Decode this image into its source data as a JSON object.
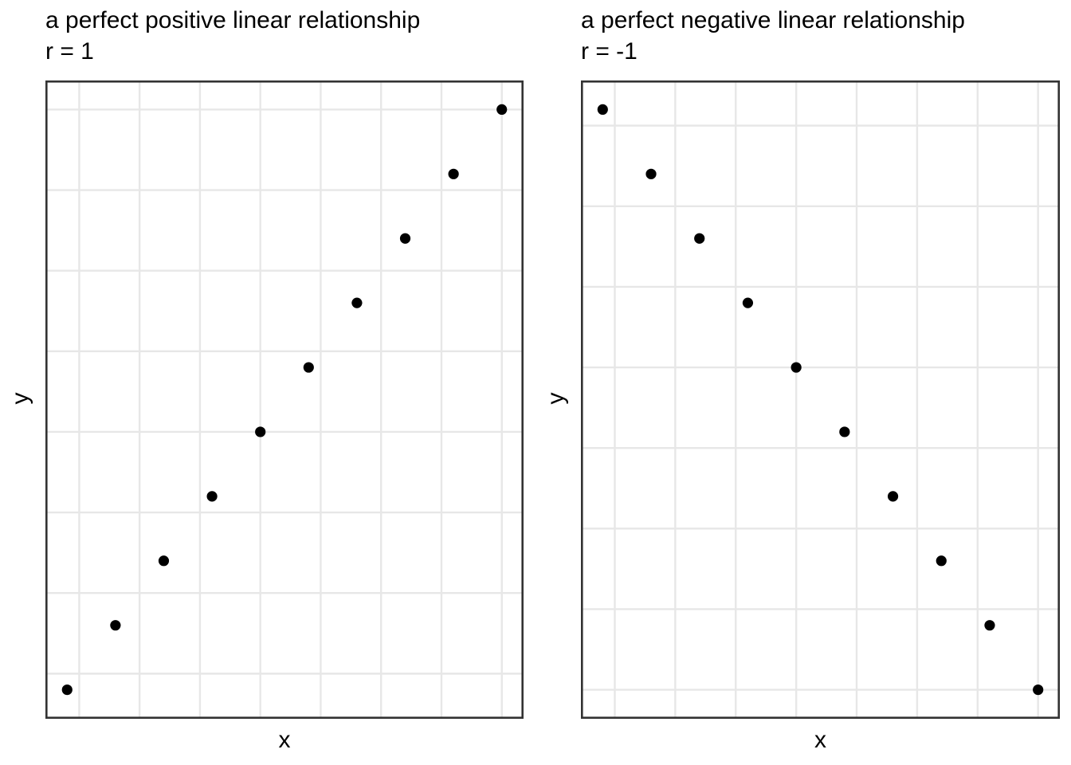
{
  "figure": {
    "background": "#ffffff",
    "text_color": "#000000"
  },
  "chart_data": [
    {
      "type": "scatter",
      "title": "a perfect positive linear relationship",
      "subtitle": "r = 1",
      "xlabel": "x",
      "ylabel": "y",
      "x": [
        1,
        2,
        3,
        4,
        5,
        6,
        7,
        8,
        9,
        10
      ],
      "y": [
        1,
        2,
        3,
        4,
        5,
        6,
        7,
        8,
        9,
        10
      ],
      "xlim": [
        0.55,
        10.45
      ],
      "ylim": [
        0.55,
        10.45
      ],
      "x_gridlines": [
        1.25,
        2.5,
        3.75,
        5,
        6.25,
        7.5,
        8.75,
        10
      ],
      "y_gridlines": [
        1.25,
        2.5,
        3.75,
        5,
        6.25,
        7.5,
        8.75,
        10
      ],
      "grid": "on",
      "legend": "none",
      "axis_tick_labels": "none",
      "style": {
        "point_color": "#000000",
        "point_radius": 6.6,
        "grid_color": "#e7e7e7",
        "grid_width": 2.4,
        "border_color": "#333333",
        "border_width": 2.6
      }
    },
    {
      "type": "scatter",
      "title": "a perfect negative linear relationship",
      "subtitle": "r = -1",
      "xlabel": "x",
      "ylabel": "y",
      "x": [
        1,
        2,
        3,
        4,
        5,
        6,
        7,
        8,
        9,
        10
      ],
      "y": [
        9,
        8,
        7,
        6,
        5,
        4,
        3,
        2,
        1,
        0
      ],
      "xlim": [
        0.55,
        10.45
      ],
      "ylim": [
        -0.45,
        9.45
      ],
      "x_gridlines": [
        1.25,
        2.5,
        3.75,
        5,
        6.25,
        7.5,
        8.75,
        10
      ],
      "y_gridlines": [
        0,
        1.25,
        2.5,
        3.75,
        5,
        6.25,
        7.5,
        8.75
      ],
      "grid": "on",
      "legend": "none",
      "axis_tick_labels": "none",
      "style": {
        "point_color": "#000000",
        "point_radius": 6.6,
        "grid_color": "#e7e7e7",
        "grid_width": 2.4,
        "border_color": "#333333",
        "border_width": 2.6
      }
    }
  ]
}
